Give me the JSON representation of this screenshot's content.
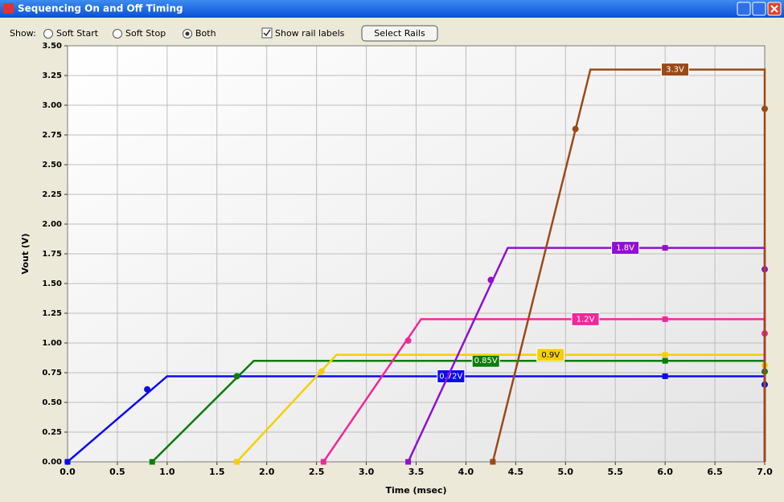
{
  "window": {
    "title": "Sequencing On and Off Timing"
  },
  "toolbar": {
    "show_label": "Show:",
    "options": [
      "Soft Start",
      "Soft Stop",
      "Both"
    ],
    "selected": 2,
    "checkbox": "Show rail labels",
    "checked": true,
    "button": "Select Rails"
  },
  "chart_data": {
    "type": "line",
    "xlabel": "Time (msec)",
    "ylabel": "Vout (V)",
    "xlim": [
      0,
      7
    ],
    "ylim": [
      0,
      3.5
    ],
    "grid": true,
    "xticks": [
      {
        "value": 0,
        "label": "0.0"
      },
      0.5,
      {
        "value": 1,
        "label": "1.0"
      },
      1.5,
      {
        "value": 2,
        "label": "2.0"
      },
      2.5,
      {
        "value": 3,
        "label": "3.0"
      },
      3.5,
      {
        "value": 4,
        "label": "4.0"
      },
      4.5,
      {
        "value": 5,
        "label": "5.0"
      },
      5.5,
      {
        "value": 6,
        "label": "6.0"
      },
      6.5,
      {
        "value": 7,
        "label": "7.0"
      }
    ],
    "yticks": [
      {
        "value": 0,
        "label": "0.00"
      },
      0.25,
      {
        "value": 0.5,
        "label": "0.50"
      },
      0.75,
      {
        "value": 1,
        "label": "1.00"
      },
      1.25,
      {
        "value": 1.5,
        "label": "1.50"
      },
      1.75,
      {
        "value": 2,
        "label": "2.00"
      },
      2.25,
      {
        "value": 2.5,
        "label": "2.50"
      },
      2.75,
      {
        "value": 3,
        "label": "3.00"
      },
      3.25,
      {
        "value": 3.5,
        "label": "3.50"
      }
    ],
    "series": [
      {
        "name": "0.72V",
        "color": "#0a0af0",
        "x": [
          0,
          1.0,
          7.0,
          7.0
        ],
        "values": [
          0,
          0.72,
          0.72,
          0
        ],
        "marker_x": [
          0,
          0.8,
          6.0,
          7.0
        ],
        "marker_values": [
          0,
          0.61,
          0.72,
          0.65
        ]
      },
      {
        "name": "0.85V",
        "color": "#0a7d0a",
        "x": [
          0.85,
          1.87,
          7.0,
          7.0
        ],
        "values": [
          0,
          0.85,
          0.85,
          0
        ],
        "marker_x": [
          0.85,
          1.7,
          6.0,
          7.0
        ],
        "marker_values": [
          0,
          0.72,
          0.85,
          0.76
        ]
      },
      {
        "name": "0.9V",
        "color": "#f5d000",
        "x": [
          1.7,
          2.7,
          7.0,
          7.0
        ],
        "values": [
          0,
          0.9,
          0.9,
          0
        ],
        "marker_x": [
          1.7,
          2.55,
          6.0,
          7.0
        ],
        "marker_values": [
          0,
          0.76,
          0.9,
          0.81
        ]
      },
      {
        "name": "1.2V",
        "color": "#f0289b",
        "x": [
          2.57,
          3.55,
          7.0,
          7.0
        ],
        "values": [
          0,
          1.2,
          1.2,
          0
        ],
        "marker_x": [
          2.57,
          3.42,
          6.0,
          7.0
        ],
        "marker_values": [
          0,
          1.02,
          1.2,
          1.08
        ]
      },
      {
        "name": "1.8V",
        "color": "#9010d0",
        "x": [
          3.42,
          4.42,
          7.0,
          7.0
        ],
        "values": [
          0,
          1.8,
          1.8,
          0
        ],
        "marker_x": [
          3.42,
          4.25,
          6.0,
          7.0
        ],
        "marker_values": [
          0,
          1.53,
          1.8,
          1.62
        ]
      },
      {
        "name": "3.3V",
        "color": "#9a4a18",
        "x": [
          4.27,
          5.25,
          7.0,
          7.0
        ],
        "values": [
          0,
          3.3,
          3.3,
          0
        ],
        "marker_x": [
          4.27,
          5.1,
          6.0,
          7.0
        ],
        "marker_values": [
          0,
          2.8,
          3.3,
          2.97
        ]
      }
    ]
  }
}
